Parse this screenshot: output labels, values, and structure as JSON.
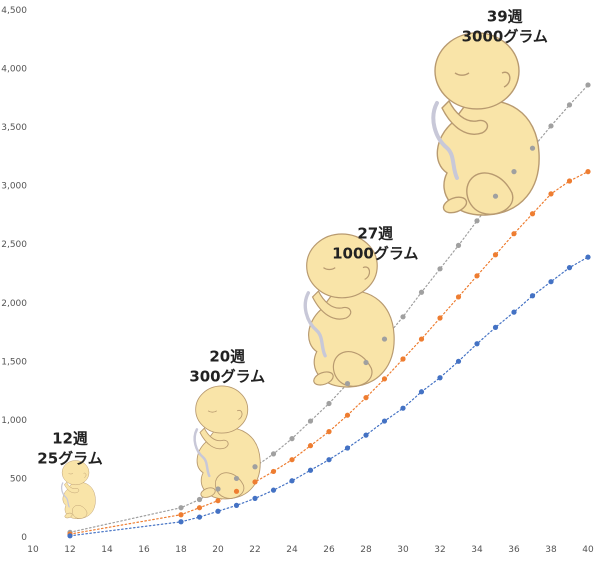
{
  "chart_data": {
    "type": "scatter",
    "title": "",
    "xlabel": "",
    "ylabel": "",
    "xlim": [
      10,
      40
    ],
    "ylim": [
      0,
      4500
    ],
    "x_ticks": [
      "10",
      "12",
      "14",
      "16",
      "18",
      "20",
      "22",
      "24",
      "26",
      "28",
      "30",
      "32",
      "34",
      "36",
      "38",
      "40"
    ],
    "y_ticks": [
      "0",
      "500",
      "1,000",
      "1,500",
      "2,000",
      "2,500",
      "3,000",
      "3,500",
      "4,000",
      "4,500"
    ],
    "grid": "none",
    "series": [
      {
        "color": "#a0a0a0",
        "x": [
          12,
          18,
          19,
          20,
          21,
          22,
          23,
          24,
          25,
          26,
          27,
          28,
          29,
          30,
          31,
          32,
          33,
          34,
          35,
          36,
          37,
          38,
          39,
          40
        ],
        "values": [
          40,
          250,
          320,
          410,
          500,
          600,
          710,
          840,
          990,
          1140,
          1310,
          1490,
          1690,
          1880,
          2090,
          2290,
          2490,
          2700,
          2910,
          3120,
          3320,
          3510,
          3690,
          3860
        ]
      },
      {
        "color": "#ee7d31",
        "x": [
          12,
          18,
          19,
          20,
          21,
          22,
          23,
          24,
          25,
          26,
          27,
          28,
          29,
          30,
          31,
          32,
          33,
          34,
          35,
          36,
          37,
          38,
          39,
          40
        ],
        "values": [
          25,
          190,
          250,
          310,
          390,
          470,
          560,
          660,
          780,
          900,
          1040,
          1190,
          1350,
          1520,
          1690,
          1870,
          2050,
          2230,
          2410,
          2590,
          2760,
          2930,
          3040,
          3120
        ]
      },
      {
        "color": "#4472c4",
        "x": [
          12,
          18,
          19,
          20,
          21,
          22,
          23,
          24,
          25,
          26,
          27,
          28,
          29,
          30,
          31,
          32,
          33,
          34,
          35,
          36,
          37,
          38,
          39,
          40
        ],
        "values": [
          10,
          130,
          170,
          220,
          270,
          330,
          400,
          480,
          570,
          660,
          760,
          870,
          990,
          1100,
          1240,
          1360,
          1500,
          1650,
          1790,
          1920,
          2060,
          2180,
          2300,
          2390
        ]
      }
    ],
    "annotations": [
      {
        "week": "12週",
        "weight": "25グラム",
        "x": 12,
        "y": 800
      },
      {
        "week": "20週",
        "weight": "300グラム",
        "x": 20.5,
        "y": 1500
      },
      {
        "week": "27週",
        "weight": "1000グラム",
        "x": 28.5,
        "y": 2550
      },
      {
        "week": "39週",
        "weight": "3000グラム",
        "x": 35.5,
        "y": 4400
      }
    ],
    "fetus_figures": [
      {
        "name": "fetus-12-weeks",
        "x": 12.3,
        "y": 380,
        "scale": 0.32
      },
      {
        "name": "fetus-20-weeks",
        "x": 20.2,
        "y": 760,
        "scale": 0.62
      },
      {
        "name": "fetus-27-weeks",
        "x": 26.7,
        "y": 1870,
        "scale": 0.84
      },
      {
        "name": "fetus-39-weeks",
        "x": 34.0,
        "y": 3450,
        "scale": 1.0
      }
    ],
    "fetus_colors": {
      "skin": "#f9e4a8",
      "outline": "#b89a70"
    }
  }
}
